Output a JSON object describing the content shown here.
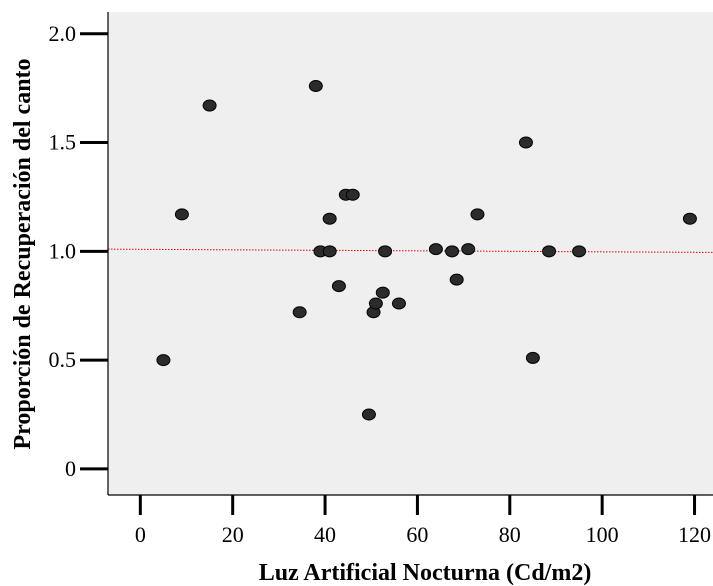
{
  "chart_data": {
    "type": "scatter",
    "title": "",
    "xlabel": "Luz Artificial Nocturna (Cd/m2)",
    "ylabel": "Proporción de Recuperación del canto",
    "x_ticks": [
      "0",
      "20",
      "40",
      "60",
      "80",
      "100",
      "120"
    ],
    "y_ticks": [
      "0",
      "0.5",
      "1.0",
      "1.5",
      "2.0"
    ],
    "xlim": [
      -7,
      124
    ],
    "ylim": [
      -0.12,
      2.1
    ],
    "grid": false,
    "legend": "none",
    "series": [
      {
        "points": [
          {
            "x": 5,
            "y": 0.5
          },
          {
            "x": 9,
            "y": 1.17
          },
          {
            "x": 15,
            "y": 1.67
          },
          {
            "x": 34.5,
            "y": 0.72
          },
          {
            "x": 38,
            "y": 1.76
          },
          {
            "x": 39,
            "y": 1.0
          },
          {
            "x": 41,
            "y": 1.15
          },
          {
            "x": 41,
            "y": 1.0
          },
          {
            "x": 43,
            "y": 0.84
          },
          {
            "x": 44.5,
            "y": 1.26
          },
          {
            "x": 46,
            "y": 1.26
          },
          {
            "x": 49.5,
            "y": 0.25
          },
          {
            "x": 50.5,
            "y": 0.72
          },
          {
            "x": 51,
            "y": 0.76
          },
          {
            "x": 52.5,
            "y": 0.81
          },
          {
            "x": 53,
            "y": 1.0
          },
          {
            "x": 56,
            "y": 0.76
          },
          {
            "x": 64,
            "y": 1.01
          },
          {
            "x": 67.5,
            "y": 1.0
          },
          {
            "x": 68.5,
            "y": 0.87
          },
          {
            "x": 71,
            "y": 1.01
          },
          {
            "x": 73,
            "y": 1.17
          },
          {
            "x": 83.5,
            "y": 1.5
          },
          {
            "x": 85,
            "y": 0.51
          },
          {
            "x": 88.5,
            "y": 1.0
          },
          {
            "x": 95,
            "y": 1.0
          },
          {
            "x": 119,
            "y": 1.15
          }
        ]
      }
    ],
    "fit_line": {
      "x": [
        -7,
        124
      ],
      "y": [
        1.01,
        0.995
      ]
    },
    "colors": {
      "plot_background": "#efefef",
      "point_fill": "#2b2b2b",
      "point_stroke": "#000000",
      "fit_line": "#e00000",
      "axis": "#000000"
    }
  }
}
